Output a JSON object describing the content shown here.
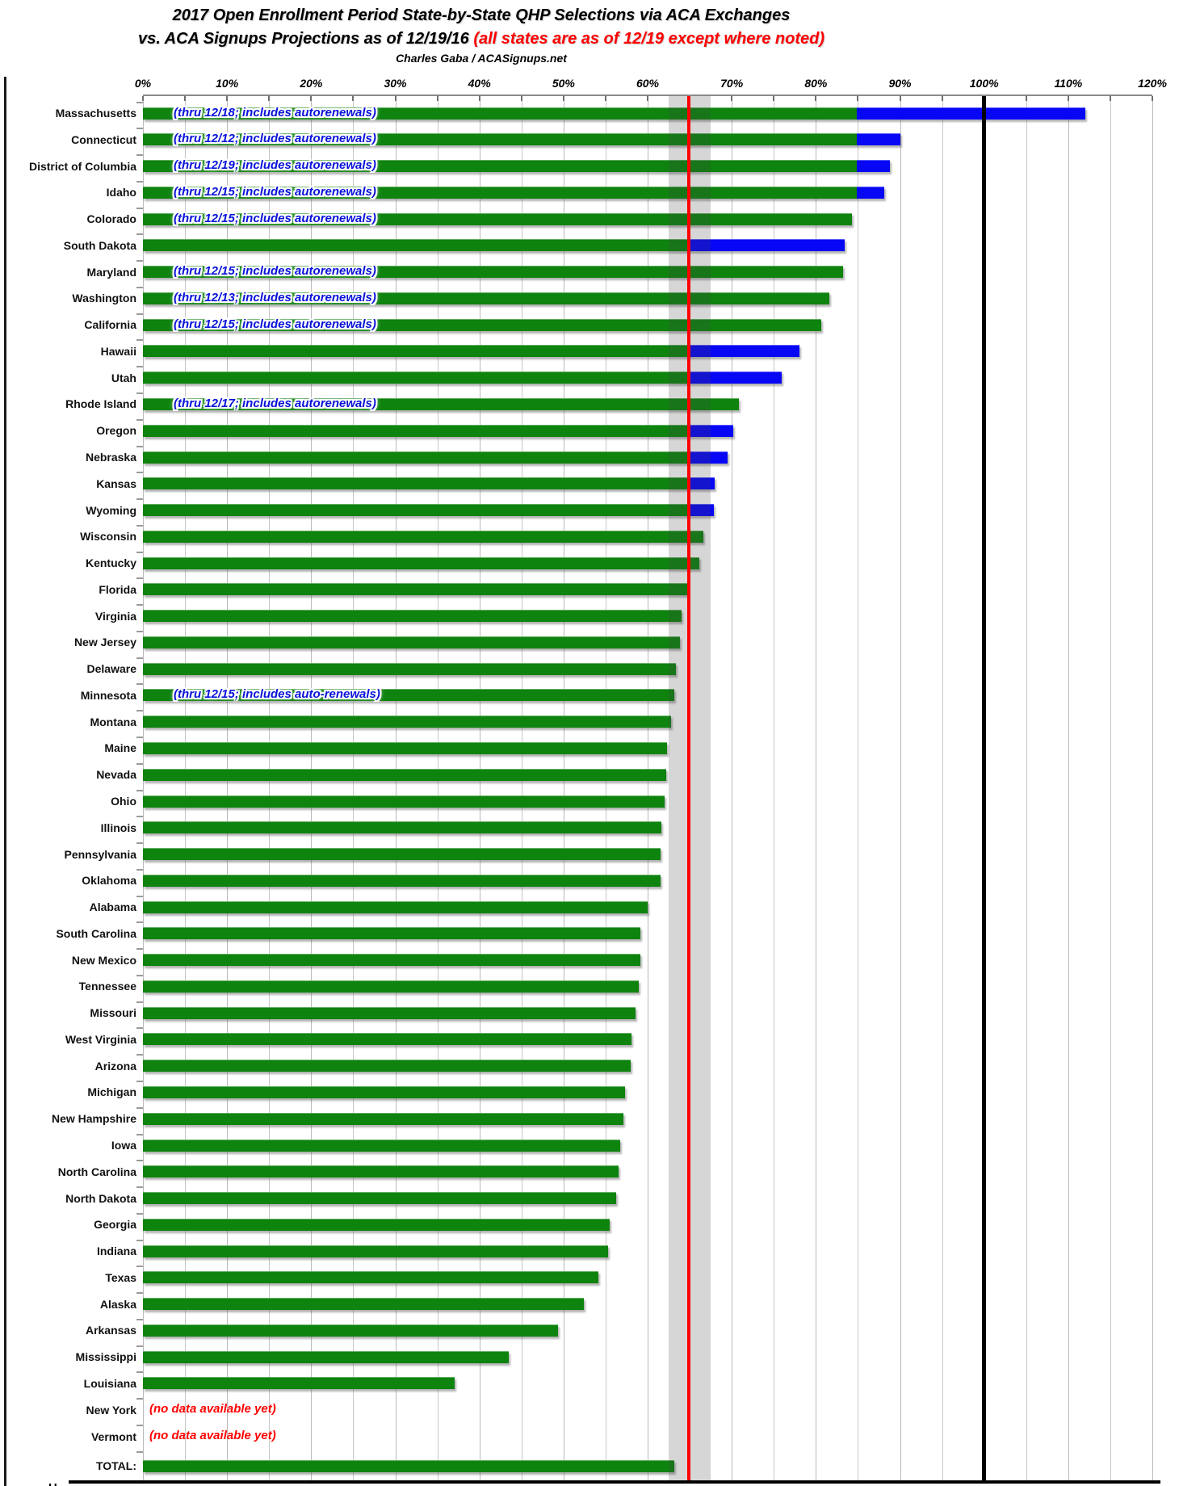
{
  "title": {
    "line1": "2017 Open Enrollment Period State-by-State QHP Selections via ACA Exchanges",
    "line2_black": "vs. ACA Signups Projections as of 12/19/16 ",
    "line2_red": "(all states are as of 12/19 except where noted)",
    "byline": "Charles Gaba / ACASignups.net"
  },
  "bottom_partial_label": "H",
  "colors": {
    "bar_green": "#0e830e",
    "bar_blue": "#0707f5",
    "note_blue": "#0712d9",
    "note_red": "#ff0000",
    "red_line": "#ff0000",
    "black_line": "#000000",
    "gray_band": "rgba(70,70,70,0.22)"
  },
  "chart_data": {
    "type": "bar",
    "orientation": "horizontal",
    "unit": "percent of ACA Signups projection",
    "x_axis": {
      "min": 0,
      "max": 120,
      "tick_step": 10,
      "gridline_step": 5,
      "tick_labels": [
        "0%",
        "10%",
        "20%",
        "30%",
        "40%",
        "50%",
        "60%",
        "70%",
        "80%",
        "90%",
        "100%",
        "110%",
        "120%"
      ]
    },
    "ref_lines": {
      "red_line_pct": 64.9,
      "black_line_pct": 100,
      "gray_band_pct": [
        62.5,
        67.5
      ]
    },
    "legend_note": "green = reported QHP selections; blue = additional/estimated portion",
    "rows": [
      {
        "name": "Massachusetts",
        "green": 84.9,
        "blue": 112.0,
        "note": "(thru 12/18; includes autorenewals)",
        "note_color": "blue"
      },
      {
        "name": "Connecticut",
        "green": 84.9,
        "blue": 90.0,
        "note": "(thru 12/12; includes autorenewals)",
        "note_color": "blue"
      },
      {
        "name": "District of Columbia",
        "green": 84.9,
        "blue": 88.8,
        "note": "(thru 12/19; includes autorenewals)",
        "note_color": "blue"
      },
      {
        "name": "Idaho",
        "green": 84.9,
        "blue": 88.1,
        "note": "(thru 12/15; includes autorenewals)",
        "note_color": "blue"
      },
      {
        "name": "Colorado",
        "green": 84.3,
        "blue": null,
        "note": "(thru 12/15; includes autorenewals)",
        "note_color": "blue"
      },
      {
        "name": "South Dakota",
        "green": 64.8,
        "blue": 83.4,
        "note": null
      },
      {
        "name": "Maryland",
        "green": 83.2,
        "blue": null,
        "note": "(thru 12/15; includes autorenewals)",
        "note_color": "blue"
      },
      {
        "name": "Washington",
        "green": 81.6,
        "blue": null,
        "note": "(thru 12/13; includes autorenewals)",
        "note_color": "blue"
      },
      {
        "name": "California",
        "green": 80.6,
        "blue": null,
        "note": "(thru 12/15; includes autorenewals)",
        "note_color": "blue"
      },
      {
        "name": "Hawaii",
        "green": 64.8,
        "blue": 78.0,
        "note": null
      },
      {
        "name": "Utah",
        "green": 64.8,
        "blue": 75.9,
        "note": null
      },
      {
        "name": "Rhode Island",
        "green": 70.8,
        "blue": null,
        "note": "(thru 12/17; includes autorenewals)",
        "note_color": "blue"
      },
      {
        "name": "Oregon",
        "green": 64.8,
        "blue": 70.2,
        "note": null
      },
      {
        "name": "Nebraska",
        "green": 64.8,
        "blue": 69.5,
        "note": null
      },
      {
        "name": "Kansas",
        "green": 64.8,
        "blue": 68.0,
        "note": null
      },
      {
        "name": "Wyoming",
        "green": 64.8,
        "blue": 67.9,
        "note": null
      },
      {
        "name": "Wisconsin",
        "green": 66.6,
        "blue": null,
        "note": null
      },
      {
        "name": "Kentucky",
        "green": 66.1,
        "blue": null,
        "note": null
      },
      {
        "name": "Florida",
        "green": 64.7,
        "blue": null,
        "note": null
      },
      {
        "name": "Virginia",
        "green": 64.0,
        "blue": null,
        "note": null
      },
      {
        "name": "New Jersey",
        "green": 63.8,
        "blue": null,
        "note": null
      },
      {
        "name": "Delaware",
        "green": 63.4,
        "blue": null,
        "note": null
      },
      {
        "name": "Minnesota",
        "green": 63.2,
        "blue": null,
        "note": "(thru 12/15; includes auto-renewals)",
        "note_color": "blue"
      },
      {
        "name": "Montana",
        "green": 62.8,
        "blue": null,
        "note": null
      },
      {
        "name": "Maine",
        "green": 62.3,
        "blue": null,
        "note": null
      },
      {
        "name": "Nevada",
        "green": 62.2,
        "blue": null,
        "note": null
      },
      {
        "name": "Ohio",
        "green": 62.0,
        "blue": null,
        "note": null
      },
      {
        "name": "Illinois",
        "green": 61.6,
        "blue": null,
        "note": null
      },
      {
        "name": "Pennsylvania",
        "green": 61.5,
        "blue": null,
        "note": null
      },
      {
        "name": "Oklahoma",
        "green": 61.5,
        "blue": null,
        "note": null
      },
      {
        "name": "Alabama",
        "green": 60.0,
        "blue": null,
        "note": null
      },
      {
        "name": "South Carolina",
        "green": 59.1,
        "blue": null,
        "note": null
      },
      {
        "name": "New Mexico",
        "green": 59.1,
        "blue": null,
        "note": null
      },
      {
        "name": "Tennessee",
        "green": 58.9,
        "blue": null,
        "note": null
      },
      {
        "name": "Missouri",
        "green": 58.6,
        "blue": null,
        "note": null
      },
      {
        "name": "West Virginia",
        "green": 58.1,
        "blue": null,
        "note": null
      },
      {
        "name": "Arizona",
        "green": 58.0,
        "blue": null,
        "note": null
      },
      {
        "name": "Michigan",
        "green": 57.3,
        "blue": null,
        "note": null
      },
      {
        "name": "New Hampshire",
        "green": 57.1,
        "blue": null,
        "note": null
      },
      {
        "name": "Iowa",
        "green": 56.7,
        "blue": null,
        "note": null
      },
      {
        "name": "North Carolina",
        "green": 56.5,
        "blue": null,
        "note": null
      },
      {
        "name": "North Dakota",
        "green": 56.3,
        "blue": null,
        "note": null
      },
      {
        "name": "Georgia",
        "green": 55.5,
        "blue": null,
        "note": null
      },
      {
        "name": "Indiana",
        "green": 55.3,
        "blue": null,
        "note": null
      },
      {
        "name": "Texas",
        "green": 54.1,
        "blue": null,
        "note": null
      },
      {
        "name": "Alaska",
        "green": 52.4,
        "blue": null,
        "note": null
      },
      {
        "name": "Arkansas",
        "green": 49.3,
        "blue": null,
        "note": null
      },
      {
        "name": "Mississippi",
        "green": 43.5,
        "blue": null,
        "note": null
      },
      {
        "name": "Louisiana",
        "green": 37.1,
        "blue": null,
        "note": null
      },
      {
        "name": "New York",
        "green": null,
        "blue": null,
        "note": "(no data available yet)",
        "note_color": "red"
      },
      {
        "name": "Vermont",
        "green": null,
        "blue": null,
        "note": "(no data available yet)",
        "note_color": "red"
      },
      {
        "name": "TOTAL:",
        "green": 63.2,
        "blue": null,
        "note": null,
        "total": true
      }
    ]
  }
}
